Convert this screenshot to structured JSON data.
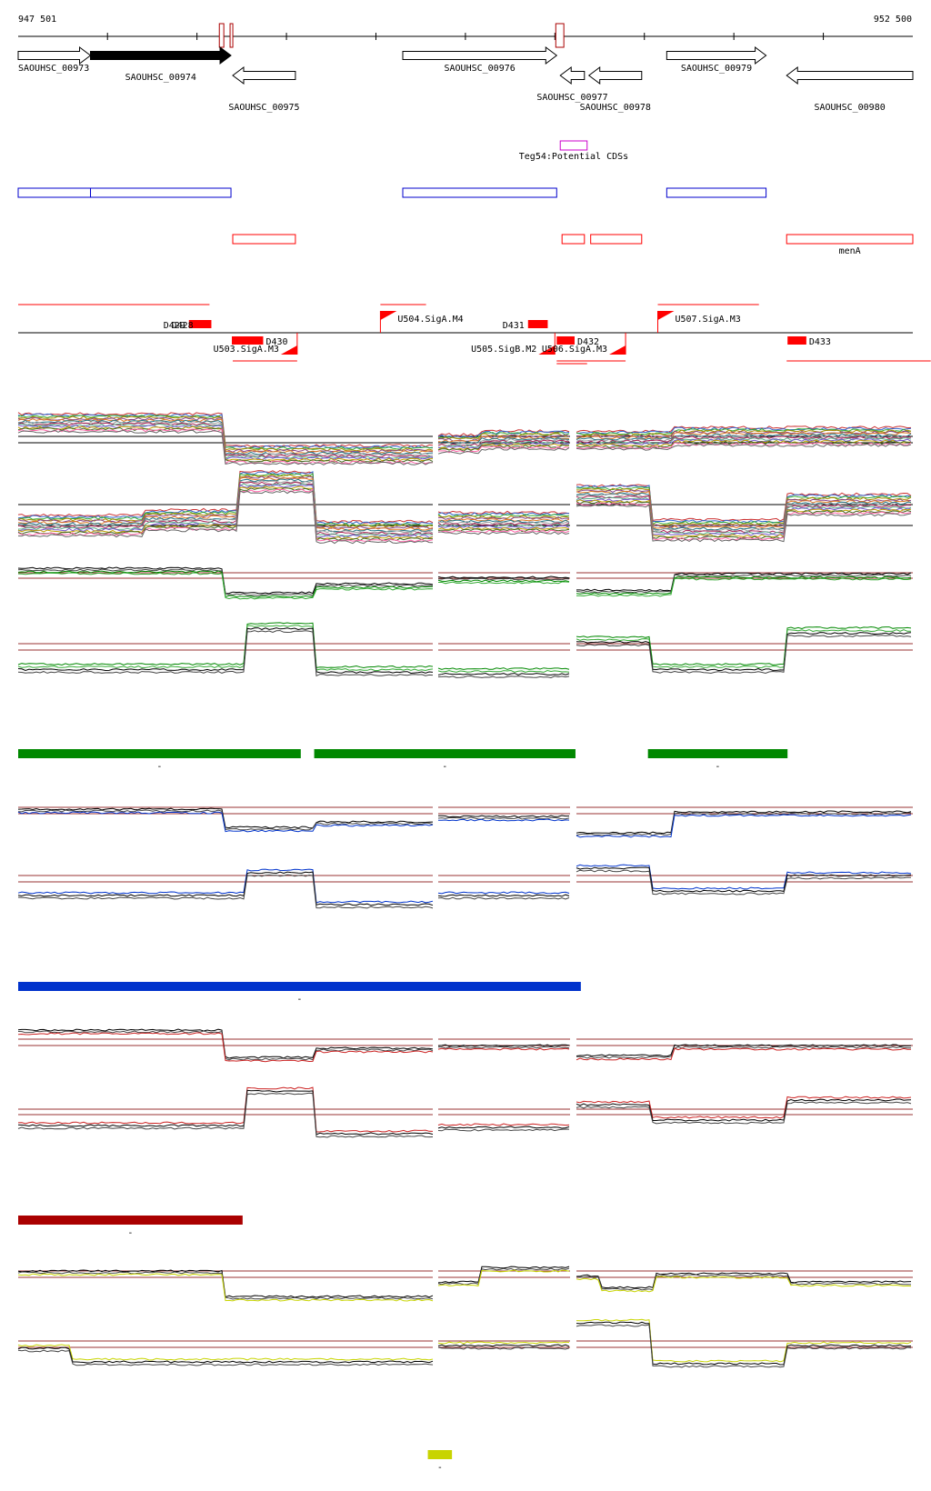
{
  "axis": {
    "start_label": "947 501",
    "end_label": "952 500",
    "start_pos": 947501,
    "end_pos": 952500
  },
  "colors": {
    "gene_outline": "#000000",
    "gene_fill_selected": "#000000",
    "red": "#ff0000",
    "dark_red": "#aa0000",
    "blue": "#0000cc",
    "magenta": "#cc00cc",
    "green": "#008800",
    "strong_blue": "#0033cc",
    "yellow_green": "#c8d400",
    "threshold": "#993333"
  },
  "genes": [
    {
      "id": "SAOUHSC_00973",
      "label": "SAOUHSC_00973",
      "start": 947501,
      "end": 947905,
      "strand": "+",
      "row": 0,
      "filled": false
    },
    {
      "id": "SAOUHSC_00974",
      "label": "SAOUHSC_00974",
      "start": 947905,
      "end": 948690,
      "strand": "+",
      "row": 0,
      "filled": true
    },
    {
      "id": "SAOUHSC_00975",
      "label": "SAOUHSC_00975",
      "start": 948700,
      "end": 949050,
      "strand": "-",
      "row": 1,
      "filled": false
    },
    {
      "id": "SAOUHSC_00976",
      "label": "SAOUHSC_00976",
      "start": 949650,
      "end": 950510,
      "strand": "+",
      "row": 0,
      "filled": false
    },
    {
      "id": "SAOUHSC_00977",
      "label": "SAOUHSC_00977",
      "start": 950530,
      "end": 950665,
      "strand": "-",
      "row": 1,
      "filled": false
    },
    {
      "id": "SAOUHSC_00978",
      "label": "SAOUHSC_00978",
      "start": 950690,
      "end": 950985,
      "strand": "-",
      "row": 1,
      "filled": false
    },
    {
      "id": "SAOUHSC_00979",
      "label": "SAOUHSC_00979",
      "start": 951125,
      "end": 951680,
      "strand": "+",
      "row": 0,
      "filled": false
    },
    {
      "id": "SAOUHSC_00980",
      "label": "SAOUHSC_00980",
      "start": 951795,
      "end": 952500,
      "strand": "-",
      "row": 1,
      "filled": false
    }
  ],
  "potential_cds": {
    "label": "Teg54:Potential CDSs",
    "start": 950530,
    "end": 950680
  },
  "blue_boxes": [
    {
      "start": 947501,
      "end": 947905
    },
    {
      "start": 947905,
      "end": 948690
    },
    {
      "start": 949650,
      "end": 950510
    },
    {
      "start": 951125,
      "end": 951680
    }
  ],
  "red_boxes": [
    {
      "start": 948700,
      "end": 949050,
      "label": ""
    },
    {
      "start": 950540,
      "end": 950665,
      "label": ""
    },
    {
      "start": 950700,
      "end": 950985,
      "label": ""
    },
    {
      "start": 951795,
      "end": 952500,
      "label": "menA"
    }
  ],
  "top_markers": [
    {
      "start": 948625,
      "end": 948650
    },
    {
      "start": 948685,
      "end": 948700
    },
    {
      "start": 950505,
      "end": 950550
    }
  ],
  "promoters": [
    {
      "label": "U504.SigA.M4",
      "pos": 949525,
      "strand": "+"
    },
    {
      "label": "U507.SigA.M3",
      "pos": 951075,
      "strand": "+"
    },
    {
      "label": "U503.SigA.M3",
      "pos": 949060,
      "strand": "-"
    },
    {
      "label": "U505.SigB.M2",
      "pos": 950500,
      "strand": "-"
    },
    {
      "label": "U506.SigA.M3",
      "pos": 950895,
      "strand": "-"
    }
  ],
  "terminators": [
    {
      "label": "D429",
      "start": 948455,
      "end": 948580,
      "strand": "+"
    },
    {
      "label": "D428",
      "start": 948500,
      "end": 948580,
      "strand": "+"
    },
    {
      "label": "D431",
      "start": 950350,
      "end": 950460,
      "strand": "+"
    },
    {
      "label": "D430",
      "start": 948695,
      "end": 948870,
      "strand": "-"
    },
    {
      "label": "D432",
      "start": 950510,
      "end": 950610,
      "strand": "-"
    },
    {
      "label": "D433",
      "start": 951800,
      "end": 951905,
      "strand": "-"
    }
  ],
  "red_extent_lines": [
    {
      "start": 947501,
      "end": 948570,
      "strand": "+"
    },
    {
      "start": 949525,
      "end": 949780,
      "strand": "+"
    },
    {
      "start": 951075,
      "end": 951640,
      "strand": "+"
    },
    {
      "start": 948700,
      "end": 949060,
      "strand": "-"
    },
    {
      "start": 950510,
      "end": 950895,
      "strand": "-"
    },
    {
      "start": 950510,
      "end": 950680,
      "strand": "-"
    },
    {
      "start": 951795,
      "end": 952600,
      "strand": "-"
    }
  ],
  "segment_bars": [
    {
      "group": "green",
      "start": 947501,
      "end": 949080,
      "mark": "-"
    },
    {
      "group": "green",
      "start": 949155,
      "end": 950615,
      "mark": "-"
    },
    {
      "group": "green",
      "start": 951020,
      "end": 951800,
      "mark": "-"
    },
    {
      "group": "blue",
      "start": 947501,
      "end": 950645,
      "mark": "-"
    },
    {
      "group": "red",
      "start": 947501,
      "end": 948755,
      "mark": "-"
    },
    {
      "group": "yellow",
      "start": 949790,
      "end": 949925,
      "mark": "-"
    }
  ],
  "condition_groups": [
    "green",
    "blue",
    "red",
    "yellow"
  ]
}
